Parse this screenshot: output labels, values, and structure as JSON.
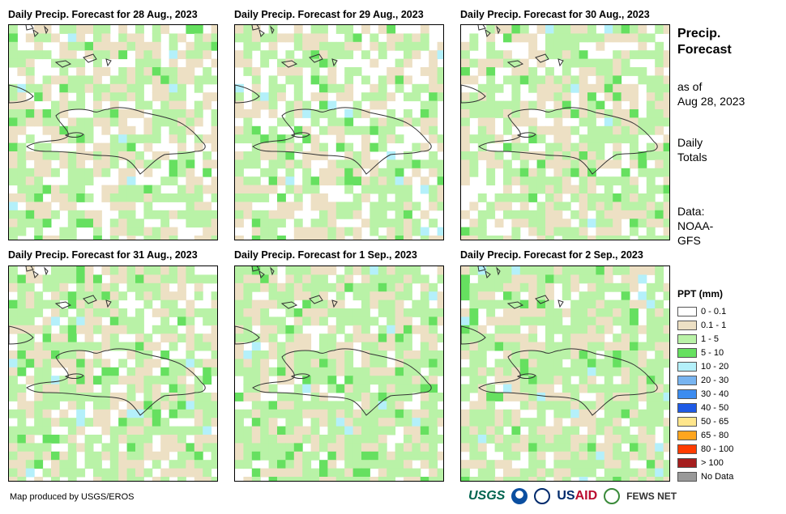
{
  "panels": [
    {
      "title": "Daily Precip. Forecast for 28 Aug., 2023",
      "intensity": 0.55,
      "seed": 7
    },
    {
      "title": "Daily Precip. Forecast for 29 Aug., 2023",
      "intensity": 0.4,
      "seed": 13
    },
    {
      "title": "Daily Precip. Forecast for 30 Aug., 2023",
      "intensity": 0.5,
      "seed": 21
    },
    {
      "title": "Daily Precip. Forecast for 31 Aug., 2023",
      "intensity": 0.62,
      "seed": 31
    },
    {
      "title": "Daily Precip. Forecast for 1 Sep., 2023",
      "intensity": 0.75,
      "seed": 43
    },
    {
      "title": "Daily Precip. Forecast for 2 Sep., 2023",
      "intensity": 0.72,
      "seed": 57
    }
  ],
  "side": {
    "title_line1": "Precip.",
    "title_line2": "Forecast",
    "asof_line1": "as of",
    "asof_line2": "Aug 28, 2023",
    "daily_line1": "Daily",
    "daily_line2": "Totals",
    "data_line1": "Data:",
    "data_line2": "NOAA-",
    "data_line3": "GFS"
  },
  "legend": {
    "title": "PPT (mm)",
    "items": [
      {
        "label": "0 - 0.1",
        "color": "#ffffff"
      },
      {
        "label": "0.1 - 1",
        "color": "#ede0c4"
      },
      {
        "label": "1 - 5",
        "color": "#b9f2a7"
      },
      {
        "label": "5 - 10",
        "color": "#66e060"
      },
      {
        "label": "10 - 20",
        "color": "#b4f0fa"
      },
      {
        "label": "20 - 30",
        "color": "#78b4f0"
      },
      {
        "label": "30 - 40",
        "color": "#3c8cf0"
      },
      {
        "label": "40 - 50",
        "color": "#1e5ae6"
      },
      {
        "label": "50 - 65",
        "color": "#ffe68c"
      },
      {
        "label": "65 - 80",
        "color": "#ffa51e"
      },
      {
        "label": "80 - 100",
        "color": "#ff3c00"
      },
      {
        "label": "> 100",
        "color": "#a51e1e"
      },
      {
        "label": "No Data",
        "color": "#999999"
      }
    ]
  },
  "credit": "Map produced by USGS/EROS",
  "logos": {
    "usgs": "USGS",
    "usaid_a": "US",
    "usaid_b": "AID",
    "fews": "FEWS NET"
  }
}
